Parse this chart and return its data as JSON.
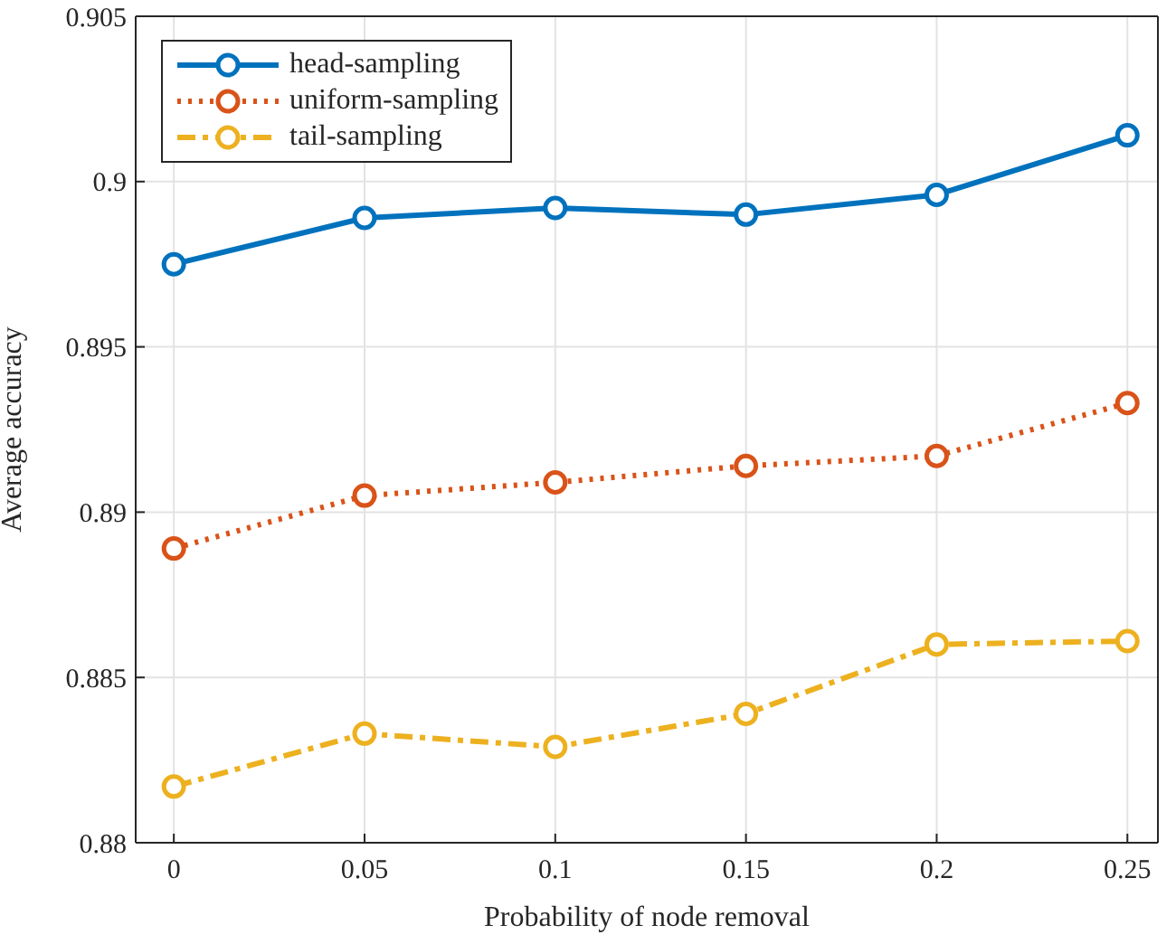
{
  "chart_data": {
    "type": "line",
    "xlabel": "Probability of node removal",
    "ylabel": "Average accuracy",
    "x": [
      0,
      0.05,
      0.1,
      0.15,
      0.2,
      0.25
    ],
    "series": [
      {
        "name": "head-sampling",
        "color": "#0072bd",
        "line_style": "solid",
        "values": [
          0.8975,
          0.8989,
          0.8992,
          0.899,
          0.8996,
          0.9014
        ]
      },
      {
        "name": "uniform-sampling",
        "color": "#d95319",
        "line_style": "dotted",
        "values": [
          0.8889,
          0.8905,
          0.8909,
          0.8914,
          0.8917,
          0.8933
        ]
      },
      {
        "name": "tail-sampling",
        "color": "#edb120",
        "line_style": "dashed",
        "values": [
          0.8817,
          0.8833,
          0.8829,
          0.8839,
          0.886,
          0.8861
        ]
      }
    ],
    "xlim": [
      -0.01,
      0.258
    ],
    "xticks": [
      0,
      0.05,
      0.1,
      0.15,
      0.2,
      0.25
    ],
    "ylim": [
      0.88,
      0.905
    ],
    "yticks": [
      0.88,
      0.885,
      0.89,
      0.895,
      0.9,
      0.905
    ],
    "grid": true,
    "legend": "top left",
    "marker": "circle"
  }
}
